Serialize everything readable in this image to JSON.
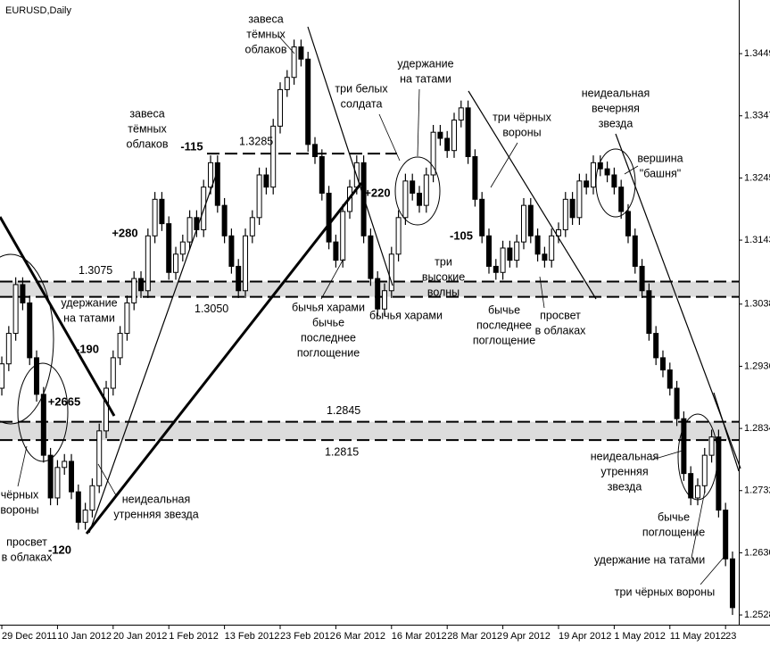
{
  "chart_data": {
    "type": "candlestick",
    "title": "EURUSD,Daily",
    "up_color": "#ffffff",
    "down_color": "#000000",
    "open": [
      1.29,
      1.294,
      1.299,
      1.307,
      1.304,
      1.295,
      1.289,
      1.279,
      1.272,
      1.277,
      1.278,
      1.273,
      1.268,
      1.27,
      1.274,
      1.283,
      1.29,
      1.295,
      1.299,
      1.304,
      1.308,
      1.306,
      1.315,
      1.321,
      1.317,
      1.309,
      1.312,
      1.314,
      1.318,
      1.316,
      1.323,
      1.327,
      1.32,
      1.315,
      1.31,
      1.306,
      1.315,
      1.318,
      1.325,
      1.323,
      1.333,
      1.339,
      1.341,
      1.346,
      1.344,
      1.33,
      1.328,
      1.322,
      1.314,
      1.311,
      1.319,
      1.323,
      1.327,
      1.315,
      1.308,
      1.303,
      1.306,
      1.312,
      1.318,
      1.324,
      1.322,
      1.32,
      1.325,
      1.332,
      1.331,
      1.329,
      1.334,
      1.336,
      1.328,
      1.321,
      1.315,
      1.31,
      1.309,
      1.313,
      1.311,
      1.314,
      1.32,
      1.315,
      1.312,
      1.311,
      1.315,
      1.316,
      1.321,
      1.318,
      1.324,
      1.323,
      1.327,
      1.326,
      1.325,
      1.323,
      1.319,
      1.315,
      1.31,
      1.306,
      1.299,
      1.295,
      1.293,
      1.29,
      1.285,
      1.276,
      1.272,
      1.274,
      1.279,
      1.282,
      1.27,
      1.262
    ],
    "high": [
      1.2952,
      1.3002,
      1.3082,
      1.3082,
      1.3052,
      1.2962,
      1.2902,
      1.2802,
      1.2782,
      1.2792,
      1.2792,
      1.2742,
      1.2712,
      1.2752,
      1.2842,
      1.2912,
      1.2962,
      1.3002,
      1.3052,
      1.3092,
      1.3092,
      1.3162,
      1.3222,
      1.3222,
      1.3182,
      1.3132,
      1.3152,
      1.3192,
      1.3192,
      1.3242,
      1.3282,
      1.3282,
      1.3212,
      1.3162,
      1.3112,
      1.3162,
      1.3192,
      1.3262,
      1.3262,
      1.3342,
      1.3402,
      1.3422,
      1.3472,
      1.3472,
      1.3452,
      1.3312,
      1.3292,
      1.3232,
      1.3152,
      1.3202,
      1.3242,
      1.3282,
      1.3282,
      1.3162,
      1.3092,
      1.3072,
      1.3132,
      1.3192,
      1.3252,
      1.3252,
      1.3232,
      1.3262,
      1.3332,
      1.3332,
      1.3322,
      1.3352,
      1.3372,
      1.3372,
      1.3292,
      1.3222,
      1.3162,
      1.3112,
      1.3142,
      1.3142,
      1.3152,
      1.3212,
      1.3212,
      1.3162,
      1.3132,
      1.3162,
      1.3172,
      1.3222,
      1.3222,
      1.3252,
      1.3252,
      1.3282,
      1.3282,
      1.3272,
      1.3262,
      1.3242,
      1.3202,
      1.3162,
      1.3112,
      1.3072,
      1.3002,
      1.2962,
      1.2942,
      1.2912,
      1.2862,
      1.2772,
      1.2752,
      1.2802,
      1.2832,
      1.2832,
      1.2712,
      1.2632
    ],
    "low": [
      1.2888,
      1.2928,
      1.2978,
      1.3028,
      1.2938,
      1.2878,
      1.2778,
      1.2708,
      1.2708,
      1.2758,
      1.2718,
      1.2668,
      1.2668,
      1.2688,
      1.2728,
      1.2818,
      1.2888,
      1.2938,
      1.2978,
      1.3028,
      1.3048,
      1.3048,
      1.3138,
      1.3158,
      1.3078,
      1.3078,
      1.3108,
      1.3128,
      1.3148,
      1.3148,
      1.3218,
      1.3188,
      1.3138,
      1.3088,
      1.3048,
      1.3048,
      1.3138,
      1.3168,
      1.3218,
      1.3218,
      1.3318,
      1.3378,
      1.3398,
      1.3428,
      1.3288,
      1.3268,
      1.3208,
      1.3128,
      1.3098,
      1.3098,
      1.3178,
      1.3218,
      1.3138,
      1.3068,
      1.3018,
      1.3018,
      1.3048,
      1.3108,
      1.3168,
      1.3208,
      1.3188,
      1.3188,
      1.3238,
      1.3298,
      1.3278,
      1.3278,
      1.3328,
      1.3268,
      1.3198,
      1.3138,
      1.3088,
      1.3078,
      1.3078,
      1.3098,
      1.3098,
      1.3128,
      1.3138,
      1.3108,
      1.3098,
      1.3098,
      1.3138,
      1.3148,
      1.3168,
      1.3168,
      1.3218,
      1.3218,
      1.3248,
      1.3238,
      1.3218,
      1.3178,
      1.3138,
      1.3088,
      1.3048,
      1.2978,
      1.2938,
      1.2918,
      1.2888,
      1.2838,
      1.2748,
      1.2708,
      1.2708,
      1.2728,
      1.2778,
      1.2688,
      1.2608,
      1.2528
    ],
    "close": [
      1.294,
      1.299,
      1.307,
      1.304,
      1.295,
      1.289,
      1.279,
      1.272,
      1.277,
      1.278,
      1.273,
      1.268,
      1.27,
      1.274,
      1.283,
      1.29,
      1.295,
      1.299,
      1.304,
      1.308,
      1.306,
      1.315,
      1.321,
      1.317,
      1.309,
      1.312,
      1.314,
      1.318,
      1.316,
      1.323,
      1.327,
      1.32,
      1.315,
      1.31,
      1.306,
      1.315,
      1.318,
      1.325,
      1.323,
      1.333,
      1.339,
      1.341,
      1.346,
      1.344,
      1.33,
      1.328,
      1.322,
      1.314,
      1.311,
      1.319,
      1.323,
      1.327,
      1.315,
      1.308,
      1.303,
      1.306,
      1.312,
      1.318,
      1.324,
      1.322,
      1.32,
      1.325,
      1.332,
      1.331,
      1.329,
      1.334,
      1.336,
      1.328,
      1.321,
      1.315,
      1.31,
      1.309,
      1.313,
      1.311,
      1.314,
      1.32,
      1.315,
      1.312,
      1.311,
      1.315,
      1.316,
      1.321,
      1.318,
      1.324,
      1.323,
      1.327,
      1.326,
      1.325,
      1.323,
      1.319,
      1.315,
      1.31,
      1.306,
      1.299,
      1.295,
      1.293,
      1.29,
      1.285,
      1.276,
      1.272,
      1.274,
      1.279,
      1.282,
      1.27,
      1.262,
      1.254
    ],
    "xlim": [
      -0.26,
      105.9
    ],
    "xticks": [
      {
        "value": 0,
        "label": "29 Dec 2011"
      },
      {
        "value": 8,
        "label": "10 Jan 2012"
      },
      {
        "value": 16,
        "label": "20 Jan 2012"
      },
      {
        "value": 24,
        "label": "1 Feb 2012"
      },
      {
        "value": 32,
        "label": "13 Feb 2012"
      },
      {
        "value": 40,
        "label": "23 Feb 2012"
      },
      {
        "value": 48,
        "label": "6 Mar 2012"
      },
      {
        "value": 56,
        "label": "16 Mar 2012"
      },
      {
        "value": 64,
        "label": "28 Mar 2012"
      },
      {
        "value": 72,
        "label": "9 Apr 2012"
      },
      {
        "value": 80,
        "label": "19 Apr 2012"
      },
      {
        "value": 88,
        "label": "1 May 2012"
      },
      {
        "value": 96,
        "label": "11 May 2012"
      },
      {
        "value": 104,
        "label": "23"
      }
    ],
    "ylim": [
      1.2512,
      1.3537
    ],
    "yticks": [
      1.3449,
      1.3347,
      1.3245,
      1.3143,
      1.3038,
      1.2936,
      1.2834,
      1.2732,
      {
        "value": 1.263,
        "label": "1.2630"
      },
      1.2528
    ],
    "levels": [
      {
        "value": 1.3285,
        "label": "1.3285"
      }
    ],
    "zones": [
      {
        "top": {
          "value": 1.3075,
          "label": "1.3075"
        },
        "bottom": {
          "value": 1.305,
          "label": "1.3050"
        }
      },
      {
        "top": {
          "value": 1.2845,
          "label": "1.2845"
        },
        "bottom": {
          "value": 1.2815,
          "label": "1.2815"
        }
      }
    ],
    "annotations": [
      [
        "завеса",
        "тёмных",
        "облаков"
      ],
      [
        "завеса",
        "тёмных",
        "облаков"
      ],
      [
        "удержание",
        "на татами"
      ],
      [
        "три белых",
        "солдата"
      ],
      [
        "три чёрных",
        "вороны"
      ],
      [
        "неидеальная",
        "вечерняя",
        "звезда"
      ],
      [
        "вершина",
        "\"башня\""
      ],
      [
        "удержание",
        "на татами"
      ],
      [
        "бычья харами",
        "бычье",
        "последнее",
        "поглощение"
      ],
      [
        "бычья харами"
      ],
      [
        "три",
        "высокие",
        "волны"
      ],
      [
        "бычье",
        "последнее",
        "поглощение"
      ],
      [
        "просвет",
        "в облаках"
      ],
      [
        "чёрных",
        "вороны"
      ],
      [
        "неидеальная",
        "утренняя звезда"
      ],
      [
        "просвет",
        "в облаках"
      ],
      [
        "неидеальная",
        "утренняя",
        "звезда"
      ],
      [
        "бычье",
        "поглощение"
      ],
      [
        "удержание на татами"
      ],
      [
        "три чёрных вороны"
      ]
    ],
    "callouts": [
      "+280",
      "-115",
      "-190",
      "+2665",
      "+220",
      "-105",
      "-120"
    ]
  }
}
